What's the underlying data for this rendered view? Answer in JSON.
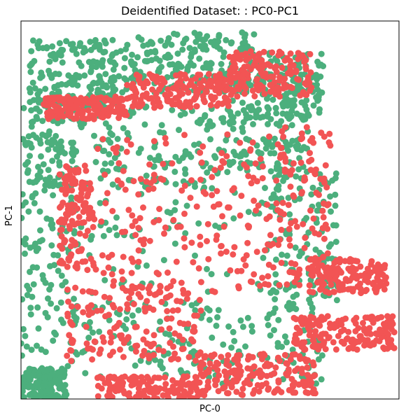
{
  "chart_data": {
    "type": "scatter",
    "title": "Deidentified Dataset: : PC0-PC1",
    "xlabel": "PC-0",
    "ylabel": "PC-1",
    "xlim": [
      0,
      100
    ],
    "ylim": [
      0,
      100
    ],
    "ticks": false,
    "grid": false,
    "legend": "none",
    "series_colors": [
      "#4caf7d",
      "#f25454"
    ],
    "series": [
      {
        "color": "#4caf7d",
        "clusters": [
          {
            "x": [
              2,
              30
            ],
            "y": [
              76,
              95
            ],
            "density": 0.9
          },
          {
            "x": [
              30,
              62
            ],
            "y": [
              81,
              97
            ],
            "density": 0.85
          },
          {
            "x": [
              62,
              80
            ],
            "y": [
              74,
              92
            ],
            "density": 0.6
          },
          {
            "x": [
              1,
              52
            ],
            "y": [
              56,
              78
            ],
            "density": 0.8
          },
          {
            "x": [
              52,
              76
            ],
            "y": [
              60,
              79
            ],
            "density": 0.6
          },
          {
            "x": [
              0,
              15
            ],
            "y": [
              5,
              78
            ],
            "density": 0.75
          },
          {
            "x": [
              15,
              80
            ],
            "y": [
              28,
              56
            ],
            "density": 0.35
          },
          {
            "x": [
              66,
              84
            ],
            "y": [
              26,
              60
            ],
            "density": 0.5
          },
          {
            "x": [
              12,
              80
            ],
            "y": [
              4,
              26
            ],
            "density": 0.8
          },
          {
            "x": [
              0,
              12
            ],
            "y": [
              0,
              8
            ],
            "density": 0.6
          }
        ]
      },
      {
        "color": "#f25454",
        "clusters": [
          {
            "x": [
              6,
              28
            ],
            "y": [
              74,
              80
            ],
            "density": 0.7
          },
          {
            "x": [
              28,
              55
            ],
            "y": [
              77,
              86
            ],
            "density": 0.8
          },
          {
            "x": [
              55,
              77
            ],
            "y": [
              80,
              92
            ],
            "density": 0.7
          },
          {
            "x": [
              18,
              68
            ],
            "y": [
              28,
              70
            ],
            "density": 0.95
          },
          {
            "x": [
              10,
              18
            ],
            "y": [
              34,
              62
            ],
            "density": 0.5
          },
          {
            "x": [
              68,
              82
            ],
            "y": [
              30,
              72
            ],
            "density": 0.5
          },
          {
            "x": [
              76,
              97
            ],
            "y": [
              28,
              37
            ],
            "density": 0.6
          },
          {
            "x": [
              12,
              48
            ],
            "y": [
              10,
              30
            ],
            "density": 0.7
          },
          {
            "x": [
              46,
              78
            ],
            "y": [
              1,
              12
            ],
            "density": 0.85
          },
          {
            "x": [
              72,
              99
            ],
            "y": [
              13,
              22
            ],
            "density": 0.75
          },
          {
            "x": [
              20,
              48
            ],
            "y": [
              0,
              6
            ],
            "density": 0.6
          }
        ]
      }
    ]
  }
}
